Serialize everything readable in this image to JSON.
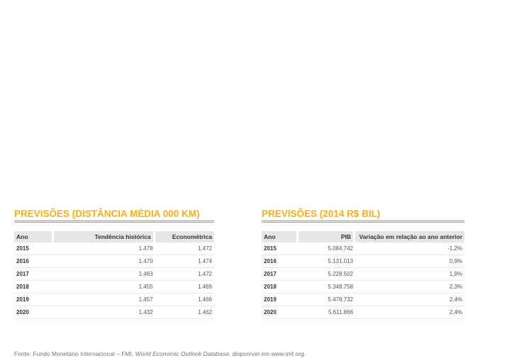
{
  "left_section": {
    "title": "PREVISÕES (DISTÂNCIA MÉDIA 000 KM)",
    "headers": [
      "Ano",
      "Tendência histórica",
      "Econométrica"
    ],
    "rows": [
      [
        "2015",
        "1.478",
        "1.472"
      ],
      [
        "2016",
        "1.470",
        "1.474"
      ],
      [
        "2017",
        "1.463",
        "1.472"
      ],
      [
        "2018",
        "1.455",
        "1.469"
      ],
      [
        "2019",
        "1.457",
        "1.466"
      ],
      [
        "2020",
        "1.432",
        "1.462"
      ]
    ]
  },
  "right_section": {
    "title": "PREVISÕES (2014 R$ BIL)",
    "headers": [
      "Ano",
      "PIB",
      "Variação em relação ao ano anterior"
    ],
    "rows": [
      [
        "2015",
        "5.084.742",
        "-1,2%"
      ],
      [
        "2016",
        "5.131.013",
        "0,9%"
      ],
      [
        "2017",
        "5.228.502",
        "1,9%"
      ],
      [
        "2018",
        "5.348.758",
        "2,3%"
      ],
      [
        "2019",
        "5.478.732",
        "2,4%"
      ],
      [
        "2020",
        "5.611.866",
        "2,4%"
      ]
    ]
  },
  "footer": {
    "prefix": "Fonte: Fundo Monetário Internacional – FMI, ",
    "italic": "World Economic Outlook Database",
    "suffix": ", disponível em www.imf.org."
  },
  "colors": {
    "title": "#F2B21B",
    "header_bg": "#E6E6E6",
    "rule": "#9A9A9A"
  }
}
